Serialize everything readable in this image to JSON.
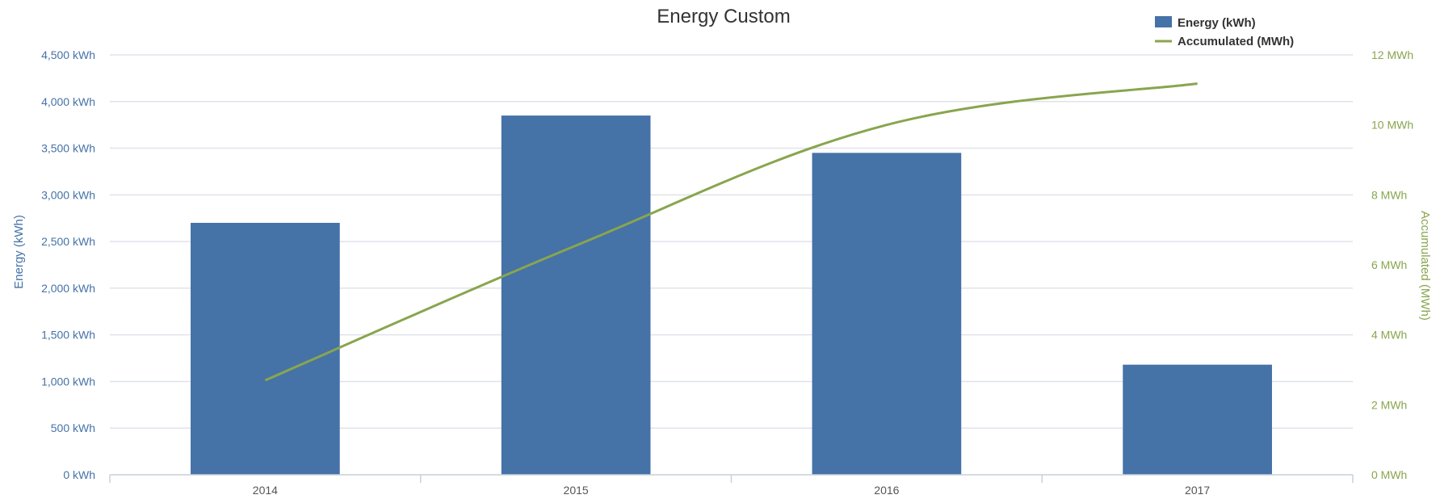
{
  "chart_data": {
    "type": "bar",
    "title": "Energy Custom",
    "categories": [
      "2014",
      "2015",
      "2016",
      "2017"
    ],
    "series": [
      {
        "name": "Energy (kWh)",
        "type": "bar",
        "axis": "left",
        "color": "#4572a7",
        "values": [
          2700,
          3850,
          3450,
          1180
        ]
      },
      {
        "name": "Accumulated (MWh)",
        "type": "line",
        "axis": "right",
        "color": "#89a54e",
        "values": [
          2.7,
          6.55,
          10.0,
          11.18
        ]
      }
    ],
    "y_left": {
      "label": "Energy (kWh)",
      "ylim": [
        0,
        4500
      ],
      "ticks": [
        0,
        500,
        1000,
        1500,
        2000,
        2500,
        3000,
        3500,
        4000,
        4500
      ],
      "tick_labels": [
        "0 kWh",
        "500 kWh",
        "1,000 kWh",
        "1,500 kWh",
        "2,000 kWh",
        "2,500 kWh",
        "3,000 kWh",
        "3,500 kWh",
        "4,000 kWh",
        "4,500 kWh"
      ]
    },
    "y_right": {
      "label": "Accumulated (MWh)",
      "ylim": [
        0,
        12
      ],
      "ticks": [
        0,
        2,
        4,
        6,
        8,
        10,
        12
      ],
      "tick_labels": [
        "0 MWh",
        "2 MWh",
        "4 MWh",
        "6 MWh",
        "8 MWh",
        "10 MWh",
        "12 MWh"
      ]
    },
    "grid": true,
    "legend_position": "top-right"
  }
}
